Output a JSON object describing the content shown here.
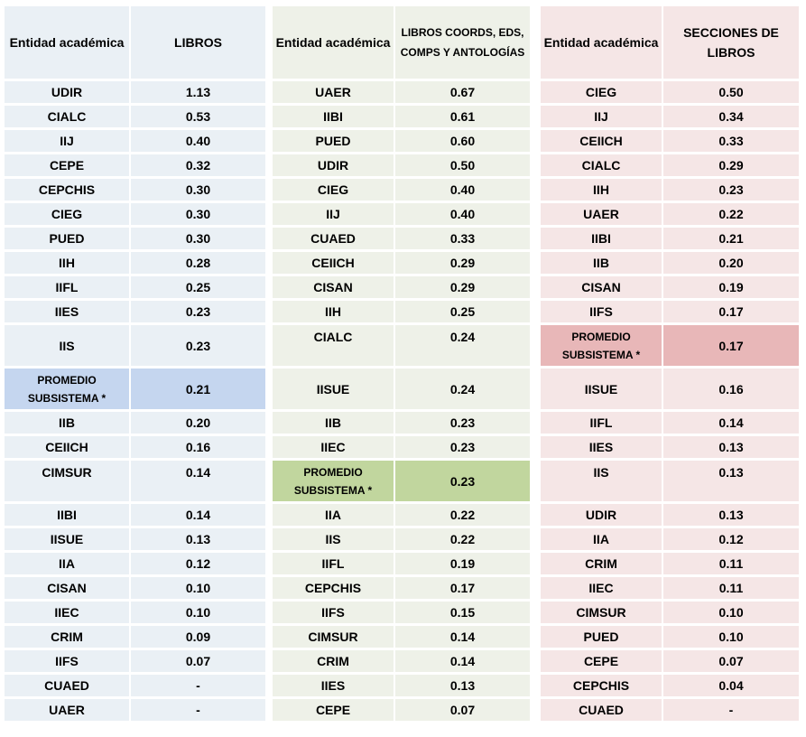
{
  "table_libros": {
    "headers": [
      "Entidad académica",
      "LIBROS"
    ],
    "rows": [
      [
        "UDIR",
        "1.13"
      ],
      [
        "CIALC",
        "0.53"
      ],
      [
        "IIJ",
        "0.40"
      ],
      [
        "CEPE",
        "0.32"
      ],
      [
        "CEPCHIS",
        "0.30"
      ],
      [
        "CIEG",
        "0.30"
      ],
      [
        "PUED",
        "0.30"
      ],
      [
        "IIH",
        "0.28"
      ],
      [
        "IIFL",
        "0.25"
      ],
      [
        "IIES",
        "0.23"
      ],
      [
        "IIS",
        "0.23"
      ],
      [
        "PROMEDIO SUBSISTEMA *",
        "0.21"
      ],
      [
        "IIB",
        "0.20"
      ],
      [
        "CEIICH",
        "0.16"
      ],
      [
        "CIMSUR",
        "0.14"
      ],
      [
        "IIBI",
        "0.14"
      ],
      [
        "IISUE",
        "0.13"
      ],
      [
        "IIA",
        "0.12"
      ],
      [
        "CISAN",
        "0.10"
      ],
      [
        "IIEC",
        "0.10"
      ],
      [
        "CRIM",
        "0.09"
      ],
      [
        "IIFS",
        "0.07"
      ],
      [
        "CUAED",
        "-"
      ],
      [
        "UAER",
        "-"
      ]
    ]
  },
  "table_coords": {
    "headers": [
      "Entidad académica",
      "LIBROS COORDS, EDS, COMPS Y ANTOLOGÍAS"
    ],
    "rows": [
      [
        "UAER",
        "0.67"
      ],
      [
        "IIBI",
        "0.61"
      ],
      [
        "PUED",
        "0.60"
      ],
      [
        "UDIR",
        "0.50"
      ],
      [
        "CIEG",
        "0.40"
      ],
      [
        "IIJ",
        "0.40"
      ],
      [
        "CUAED",
        "0.33"
      ],
      [
        "CEIICH",
        "0.29"
      ],
      [
        "CISAN",
        "0.29"
      ],
      [
        "IIH",
        "0.25"
      ],
      [
        "CIALC",
        "0.24"
      ],
      [
        "IISUE",
        "0.24"
      ],
      [
        "IIB",
        "0.23"
      ],
      [
        "IIEC",
        "0.23"
      ],
      [
        "PROMEDIO SUBSISTEMA *",
        "0.23"
      ],
      [
        "IIA",
        "0.22"
      ],
      [
        "IIS",
        "0.22"
      ],
      [
        "IIFL",
        "0.19"
      ],
      [
        "CEPCHIS",
        "0.17"
      ],
      [
        "IIFS",
        "0.15"
      ],
      [
        "CIMSUR",
        "0.14"
      ],
      [
        "CRIM",
        "0.14"
      ],
      [
        "IIES",
        "0.13"
      ],
      [
        "CEPE",
        "0.07"
      ]
    ]
  },
  "table_secciones": {
    "headers": [
      "Entidad académica",
      "SECCIONES DE LIBROS"
    ],
    "rows": [
      [
        "CIEG",
        "0.50"
      ],
      [
        "IIJ",
        "0.34"
      ],
      [
        "CEIICH",
        "0.33"
      ],
      [
        "CIALC",
        "0.29"
      ],
      [
        "IIH",
        "0.23"
      ],
      [
        "UAER",
        "0.22"
      ],
      [
        "IIBI",
        "0.21"
      ],
      [
        "IIB",
        "0.20"
      ],
      [
        "CISAN",
        "0.19"
      ],
      [
        "IIFS",
        "0.17"
      ],
      [
        "PROMEDIO SUBSISTEMA *",
        "0.17"
      ],
      [
        "IISUE",
        "0.16"
      ],
      [
        "IIFL",
        "0.14"
      ],
      [
        "IIES",
        "0.13"
      ],
      [
        "IIS",
        "0.13"
      ],
      [
        "UDIR",
        "0.13"
      ],
      [
        "IIA",
        "0.12"
      ],
      [
        "CRIM",
        "0.11"
      ],
      [
        "IIEC",
        "0.11"
      ],
      [
        "CIMSUR",
        "0.10"
      ],
      [
        "PUED",
        "0.10"
      ],
      [
        "CEPE",
        "0.07"
      ],
      [
        "CEPCHIS",
        "0.04"
      ],
      [
        "CUAED",
        "-"
      ]
    ]
  },
  "colors": {
    "blue_bg": "#eaf0f5",
    "blue_highlight": "#c5d6ef",
    "green_bg": "#eef1e8",
    "green_highlight": "#c1d69e",
    "pink_bg": "#f5e6e6",
    "pink_highlight": "#e8b7b8"
  }
}
